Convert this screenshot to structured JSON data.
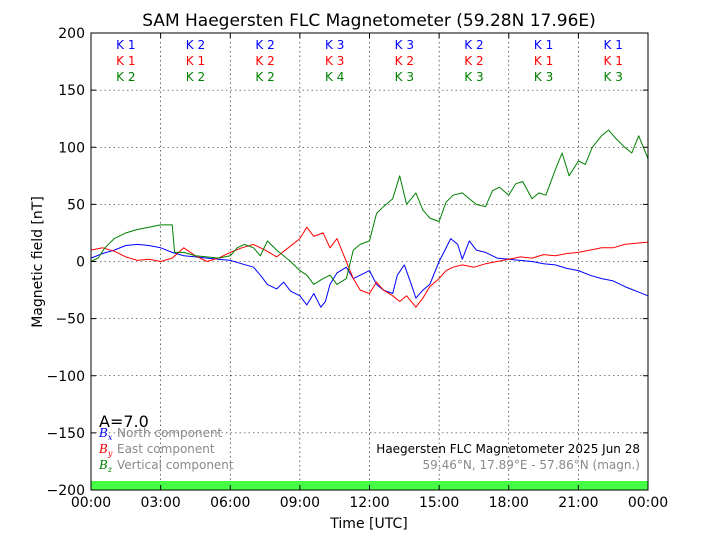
{
  "chart_data": {
    "type": "line",
    "title": "SAM Haegersten FLC Magnetometer (59.28N 17.96E)",
    "xlabel": "Time [UTC]",
    "ylabel": "Magnetic field [nT]",
    "xlim": [
      0,
      24
    ],
    "ylim": [
      -200,
      200
    ],
    "x_tick_labels": [
      "00:00",
      "03:00",
      "06:00",
      "09:00",
      "12:00",
      "15:00",
      "18:00",
      "21:00",
      "00:00"
    ],
    "y_ticks": [
      -200,
      -150,
      -100,
      -50,
      0,
      50,
      100,
      150,
      200
    ],
    "y_tick_labels": [
      "−200",
      "−150",
      "−100",
      "−50",
      "0",
      "50",
      "100",
      "150",
      "200"
    ],
    "grid": true,
    "activity_index": "A=7.0",
    "info_line1": "Haegersten FLC Magnetometer 2025 Jun 28",
    "info_line2": "59.46°N, 17.89°E - 57.86°N (magn.)",
    "k_indices": {
      "north": [
        "K 1",
        "K 2",
        "K 2",
        "K 3",
        "K 3",
        "K 2",
        "K 1",
        "K 1"
      ],
      "east": [
        "K 1",
        "K 1",
        "K 2",
        "K 3",
        "K 2",
        "K 2",
        "K 1",
        "K 1"
      ],
      "vertical": [
        "K 2",
        "K 2",
        "K 2",
        "K 4",
        "K 3",
        "K 3",
        "K 3",
        "K 3"
      ]
    },
    "legend": [
      {
        "symbol": "B",
        "sub": "x",
        "label": "North component",
        "color": "#0000ff"
      },
      {
        "symbol": "B",
        "sub": "y",
        "label": "East component",
        "color": "#ff0000"
      },
      {
        "symbol": "B",
        "sub": "z",
        "label": "Vertical component",
        "color": "#008000"
      }
    ],
    "quiet_bar_color": "#44ff44",
    "series": [
      {
        "name": "North component",
        "color": "#0000ff",
        "x": [
          0,
          0.5,
          1,
          1.5,
          2,
          2.5,
          3,
          3.5,
          4,
          4.5,
          5,
          5.5,
          6,
          6.5,
          7,
          7.3,
          7.6,
          8,
          8.3,
          8.6,
          9,
          9.3,
          9.6,
          9.9,
          10.1,
          10.3,
          10.6,
          11,
          11.3,
          11.6,
          12,
          12.3,
          12.6,
          13,
          13.2,
          13.5,
          13.8,
          14,
          14.3,
          14.6,
          15,
          15.2,
          15.5,
          15.8,
          16,
          16.3,
          16.6,
          17,
          17.5,
          18,
          18.5,
          19,
          19.5,
          20,
          20.5,
          21,
          21.5,
          22,
          22.5,
          23,
          23.5,
          24
        ],
        "y": [
          3,
          7,
          10,
          14,
          15,
          14,
          12,
          8,
          5,
          4,
          3,
          2,
          1,
          -2,
          -5,
          -12,
          -20,
          -24,
          -18,
          -26,
          -30,
          -38,
          -28,
          -40,
          -35,
          -20,
          -10,
          -5,
          -15,
          -12,
          -8,
          -20,
          -25,
          -28,
          -12,
          -3,
          -20,
          -32,
          -25,
          -20,
          0,
          8,
          20,
          15,
          2,
          18,
          10,
          8,
          3,
          2,
          1,
          0,
          -2,
          -3,
          -6,
          -8,
          -12,
          -15,
          -17,
          -22,
          -26,
          -30
        ]
      },
      {
        "name": "East component",
        "color": "#ff0000",
        "x": [
          0,
          0.5,
          1,
          1.5,
          2,
          2.5,
          3,
          3.5,
          4,
          4.5,
          5,
          5.5,
          6,
          6.5,
          7,
          7.5,
          8,
          8.5,
          9,
          9.3,
          9.6,
          10,
          10.3,
          10.6,
          11,
          11.3,
          11.6,
          12,
          12.3,
          12.6,
          13,
          13.3,
          13.6,
          14,
          14.3,
          14.6,
          15,
          15.3,
          15.6,
          16,
          16.5,
          17,
          17.5,
          18,
          18.5,
          19,
          19.5,
          20,
          20.5,
          21,
          21.5,
          22,
          22.5,
          23,
          23.5,
          24
        ],
        "y": [
          10,
          12,
          9,
          4,
          1,
          2,
          0,
          3,
          12,
          5,
          0,
          3,
          8,
          12,
          15,
          10,
          4,
          12,
          20,
          30,
          22,
          25,
          12,
          20,
          0,
          -15,
          -25,
          -28,
          -18,
          -25,
          -30,
          -35,
          -30,
          -40,
          -32,
          -22,
          -15,
          -8,
          -5,
          -3,
          -5,
          -2,
          0,
          2,
          4,
          3,
          6,
          5,
          7,
          8,
          10,
          12,
          12,
          15,
          16,
          17
        ]
      },
      {
        "name": "Vertical component",
        "color": "#008000",
        "x": [
          0,
          0.3,
          0.6,
          1,
          1.5,
          2,
          2.5,
          3,
          3.5,
          3.6,
          4,
          4.5,
          5,
          5.5,
          6,
          6.3,
          6.6,
          7,
          7.3,
          7.6,
          8,
          8.3,
          8.6,
          9,
          9.3,
          9.6,
          10,
          10.3,
          10.6,
          11,
          11.3,
          11.6,
          12,
          12.3,
          12.6,
          13,
          13.3,
          13.6,
          14,
          14.3,
          14.6,
          15,
          15.3,
          15.6,
          16,
          16.3,
          16.6,
          17,
          17.3,
          17.6,
          18,
          18.3,
          18.6,
          19,
          19.3,
          19.6,
          20,
          20.3,
          20.6,
          21,
          21.3,
          21.6,
          22,
          22.3,
          22.6,
          23,
          23.3,
          23.6,
          24
        ],
        "y": [
          0,
          3,
          12,
          20,
          25,
          28,
          30,
          32,
          32,
          8,
          8,
          5,
          4,
          3,
          5,
          12,
          15,
          12,
          5,
          18,
          10,
          5,
          0,
          -8,
          -12,
          -20,
          -15,
          -12,
          -20,
          -15,
          10,
          15,
          18,
          42,
          48,
          55,
          75,
          50,
          60,
          45,
          38,
          35,
          52,
          58,
          60,
          55,
          50,
          48,
          62,
          65,
          58,
          68,
          70,
          55,
          60,
          58,
          80,
          95,
          75,
          88,
          85,
          100,
          110,
          115,
          108,
          100,
          95,
          110,
          90
        ]
      }
    ]
  }
}
